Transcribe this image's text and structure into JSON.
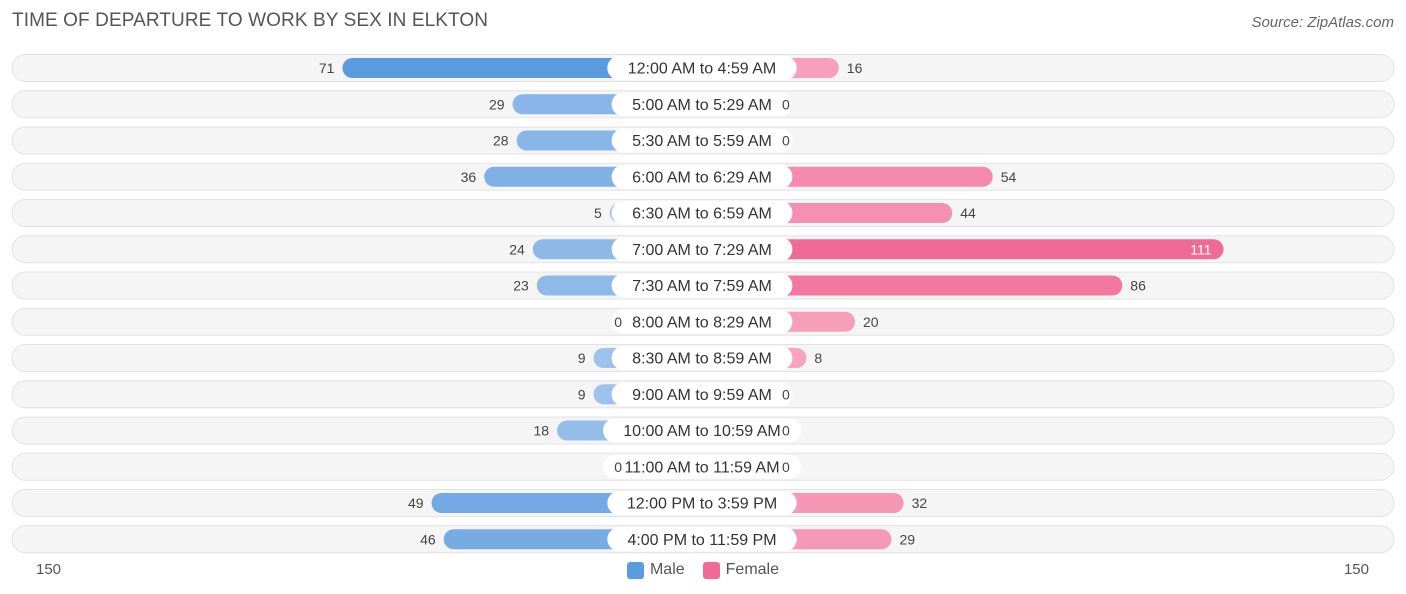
{
  "title": "TIME OF DEPARTURE TO WORK BY SEX IN ELKTON",
  "source": "Source: ZipAtlas.com",
  "colors": {
    "male_strong": "#5b9bdf",
    "male_light": "#a7c8ee",
    "female_strong": "#f06a96",
    "female_light": "#f7a9c2",
    "row_bg": "#efefef"
  },
  "chart_data": {
    "type": "bar",
    "orientation": "horizontal-diverging",
    "categories": [
      "12:00 AM to 4:59 AM",
      "5:00 AM to 5:29 AM",
      "5:30 AM to 5:59 AM",
      "6:00 AM to 6:29 AM",
      "6:30 AM to 6:59 AM",
      "7:00 AM to 7:29 AM",
      "7:30 AM to 7:59 AM",
      "8:00 AM to 8:29 AM",
      "8:30 AM to 8:59 AM",
      "9:00 AM to 9:59 AM",
      "10:00 AM to 10:59 AM",
      "11:00 AM to 11:59 AM",
      "12:00 PM to 3:59 PM",
      "4:00 PM to 11:59 PM"
    ],
    "series": [
      {
        "name": "Male",
        "values": [
          71,
          29,
          28,
          36,
          5,
          24,
          23,
          0,
          9,
          9,
          18,
          0,
          49,
          46
        ]
      },
      {
        "name": "Female",
        "values": [
          16,
          0,
          0,
          54,
          44,
          111,
          86,
          20,
          8,
          0,
          0,
          0,
          32,
          29
        ]
      }
    ],
    "xlim": [
      -150,
      150
    ],
    "axis_labels": {
      "left": "150",
      "right": "150"
    },
    "legend": {
      "position": "bottom-center",
      "entries": [
        "Male",
        "Female"
      ]
    }
  }
}
